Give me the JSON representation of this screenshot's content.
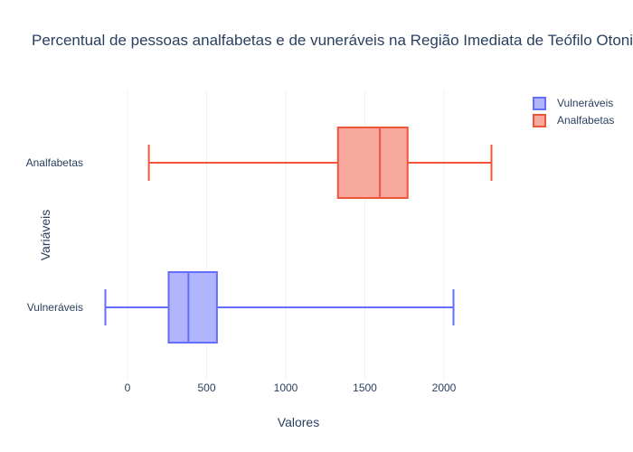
{
  "chart_data": {
    "type": "box",
    "orientation": "horizontal",
    "title": "Percentual de pessoas analfabetas e de vuneráveis na Região Imediata de Teófilo Otoni",
    "xlabel": "Valores",
    "ylabel": "Variáveis",
    "xlim": [
      -150,
      2400
    ],
    "x_ticks": [
      0,
      500,
      1000,
      1500,
      2000
    ],
    "x_tick_labels": [
      "0",
      "500",
      "1000",
      "1500",
      "2000"
    ],
    "grid": true,
    "legend_position": "top-right",
    "categories": [
      "Vulneráveis",
      "Analfabetas"
    ],
    "series": [
      {
        "name": "Vulneráveis",
        "color": "#636efa",
        "fill": "#b1b6fc",
        "min": -140,
        "q1": 260,
        "median": 385,
        "q3": 565,
        "max": 2060
      },
      {
        "name": "Analfabetas",
        "color": "#ef553b",
        "fill": "#f7a99d",
        "min": 135,
        "q1": 1330,
        "median": 1595,
        "q3": 1770,
        "max": 2300
      }
    ]
  }
}
